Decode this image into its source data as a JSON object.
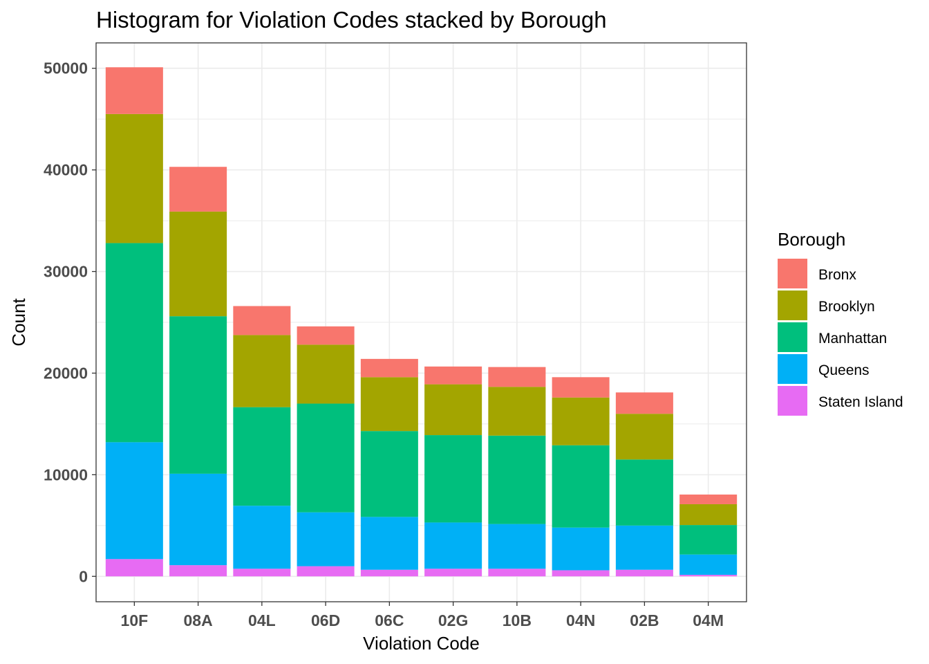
{
  "chart_data": {
    "type": "bar",
    "stacked": true,
    "title": "Histogram for Violation Codes stacked by Borough",
    "xlabel": "Violation Code",
    "ylabel": "Count",
    "ylim": [
      -2500,
      52500
    ],
    "yticks": [
      0,
      10000,
      20000,
      30000,
      40000,
      50000
    ],
    "grid": true,
    "legend_title": "Borough",
    "legend_position": "right",
    "categories": [
      "10F",
      "08A",
      "04L",
      "06D",
      "06C",
      "02G",
      "10B",
      "04N",
      "02B",
      "04M"
    ],
    "series": [
      {
        "name": "Staten Island",
        "color": "#E76BF3",
        "values": [
          1700,
          1100,
          750,
          1000,
          650,
          750,
          750,
          600,
          650,
          150
        ]
      },
      {
        "name": "Queens",
        "color": "#00B0F6",
        "values": [
          11500,
          9000,
          6200,
          5300,
          5200,
          4550,
          4400,
          4200,
          4350,
          2000
        ]
      },
      {
        "name": "Manhattan",
        "color": "#00BF7D",
        "values": [
          19600,
          15500,
          9700,
          10700,
          8450,
          8600,
          8700,
          8100,
          6500,
          2900
        ]
      },
      {
        "name": "Brooklyn",
        "color": "#A3A500",
        "values": [
          12700,
          10300,
          7100,
          5800,
          5300,
          5000,
          4800,
          4700,
          4500,
          2050
        ]
      },
      {
        "name": "Bronx",
        "color": "#F8766D",
        "values": [
          4600,
          4400,
          2850,
          1800,
          1800,
          1750,
          1950,
          2000,
          2100,
          950
        ]
      }
    ],
    "legend_order": [
      "Bronx",
      "Brooklyn",
      "Manhattan",
      "Queens",
      "Staten Island"
    ]
  }
}
